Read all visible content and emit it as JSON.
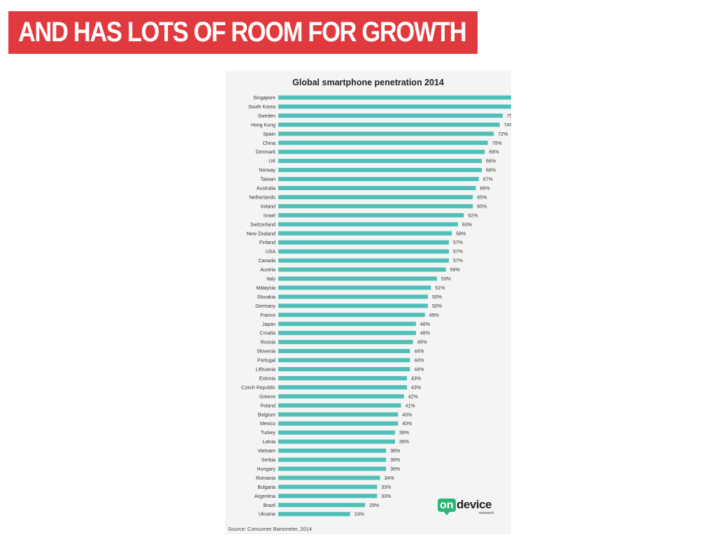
{
  "slide": {
    "title": "AND HAS LOTS OF ROOM FOR GROWTH",
    "banner_color": "#e03a3e"
  },
  "chart_data": {
    "type": "bar",
    "orientation": "horizontal",
    "title": "Global smartphone penetration 2014",
    "categories": [
      "Singapore",
      "South Korea",
      "Sweden",
      "Hong Kong",
      "Spain",
      "China",
      "Denmark",
      "UK",
      "Norway",
      "Taiwan",
      "Australia",
      "Netherlands",
      "Ireland",
      "Israel",
      "Switzerland",
      "New Zealand",
      "Finland",
      "USA",
      "Canada",
      "Austria",
      "Italy",
      "Malaysia",
      "Slovakia",
      "Germany",
      "France",
      "Japan",
      "Croatia",
      "Russia",
      "Slovenia",
      "Portugal",
      "Lithuania",
      "Estonia",
      "Czech Republic",
      "Greece",
      "Poland",
      "Belgium",
      "Mexico",
      "Turkey",
      "Latvia",
      "Vietnam",
      "Serbia",
      "Hungary",
      "Romania",
      "Bulgaria",
      "Argentina",
      "Brazil",
      "Ukraine"
    ],
    "values": [
      85,
      80,
      75,
      74,
      72,
      70,
      69,
      68,
      68,
      67,
      66,
      65,
      65,
      62,
      60,
      58,
      57,
      57,
      57,
      56,
      53,
      51,
      50,
      50,
      49,
      46,
      46,
      45,
      44,
      44,
      44,
      43,
      43,
      42,
      41,
      40,
      40,
      39,
      39,
      36,
      36,
      36,
      34,
      33,
      33,
      29,
      24
    ],
    "value_suffix": "%",
    "bar_color": "#4fbfb8",
    "grid": false,
    "legend": "none",
    "source": "Source: Consumer Barometer, 2014"
  },
  "logo": {
    "on": "on",
    "device": "device",
    "research": "research",
    "brand_color": "#2bb673"
  }
}
